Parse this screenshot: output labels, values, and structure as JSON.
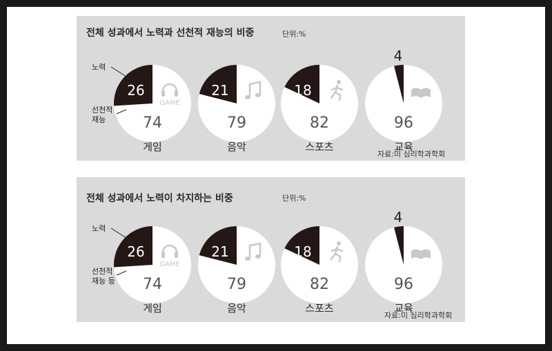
{
  "colors": {
    "effort": "#231815",
    "talent": "#ffffff",
    "panel": "#dadada",
    "icon": "#c8c8c8"
  },
  "panels": [
    {
      "title": "전체 성과에서 노력과 선천적 재능의 비중",
      "unit": "단위:%",
      "source": "자료:미 심리학과학회",
      "legend": {
        "effort": "노력",
        "talent_line1": "선천적",
        "talent_line2": "재능"
      }
    },
    {
      "title": "전체 성과에서 노력이 차지하는 비중",
      "unit": "단위:%",
      "source": "자료:미 심리학과학회",
      "legend": {
        "effort": "노력",
        "talent_line1": "선천적",
        "talent_line2": "재능 등"
      }
    }
  ],
  "icons": {
    "game": "headphones-icon",
    "music": "music-note-icon",
    "sports": "runner-icon",
    "education": "open-book-icon",
    "game_text": "GAME"
  },
  "chart_data": [
    {
      "type": "pie",
      "title": "전체 성과에서 노력과 선천적 재능의 비중",
      "unit": "단위:%",
      "categories": [
        "게임",
        "음악",
        "스포츠",
        "교육"
      ],
      "series": [
        {
          "name": "노력",
          "values": [
            26,
            21,
            18,
            4
          ]
        },
        {
          "name": "선천적 재능",
          "values": [
            74,
            79,
            82,
            96
          ]
        }
      ]
    },
    {
      "type": "pie",
      "title": "전체 성과에서 노력이 차지하는 비중",
      "unit": "단위:%",
      "categories": [
        "게임",
        "음악",
        "스포츠",
        "교육"
      ],
      "series": [
        {
          "name": "노력",
          "values": [
            26,
            21,
            18,
            4
          ]
        },
        {
          "name": "선천적 재능 등",
          "values": [
            74,
            79,
            82,
            96
          ]
        }
      ]
    }
  ]
}
